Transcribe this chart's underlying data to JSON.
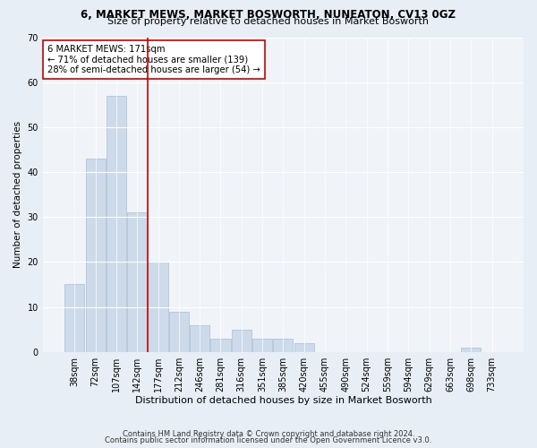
{
  "title1": "6, MARKET MEWS, MARKET BOSWORTH, NUNEATON, CV13 0GZ",
  "title2": "Size of property relative to detached houses in Market Bosworth",
  "xlabel": "Distribution of detached houses by size in Market Bosworth",
  "ylabel": "Number of detached properties",
  "bin_labels": [
    "38sqm",
    "72sqm",
    "107sqm",
    "142sqm",
    "177sqm",
    "212sqm",
    "246sqm",
    "281sqm",
    "316sqm",
    "351sqm",
    "385sqm",
    "420sqm",
    "455sqm",
    "490sqm",
    "524sqm",
    "559sqm",
    "594sqm",
    "629sqm",
    "663sqm",
    "698sqm",
    "733sqm"
  ],
  "bar_heights": [
    15,
    43,
    57,
    31,
    20,
    9,
    6,
    3,
    5,
    3,
    3,
    2,
    0,
    0,
    0,
    0,
    0,
    0,
    0,
    1,
    0
  ],
  "bar_color": "#ccdaea",
  "bar_edge_color": "#aabfd4",
  "marker_color": "#cc0000",
  "annotation_text": "6 MARKET MEWS: 171sqm\n← 71% of detached houses are smaller (139)\n28% of semi-detached houses are larger (54) →",
  "annotation_box_color": "#ffffff",
  "annotation_box_edge": "#cc0000",
  "ylim": [
    0,
    70
  ],
  "yticks": [
    0,
    10,
    20,
    30,
    40,
    50,
    60,
    70
  ],
  "footer1": "Contains HM Land Registry data © Crown copyright and database right 2024.",
  "footer2": "Contains public sector information licensed under the Open Government Licence v3.0.",
  "bg_color": "#e8eef5",
  "plot_bg_color": "#f0f4f8",
  "title1_fontsize": 8.5,
  "title2_fontsize": 8.0,
  "ylabel_fontsize": 7.5,
  "xlabel_fontsize": 8.0,
  "tick_fontsize": 7.0,
  "annotation_fontsize": 7.2,
  "footer_fontsize": 6.0
}
